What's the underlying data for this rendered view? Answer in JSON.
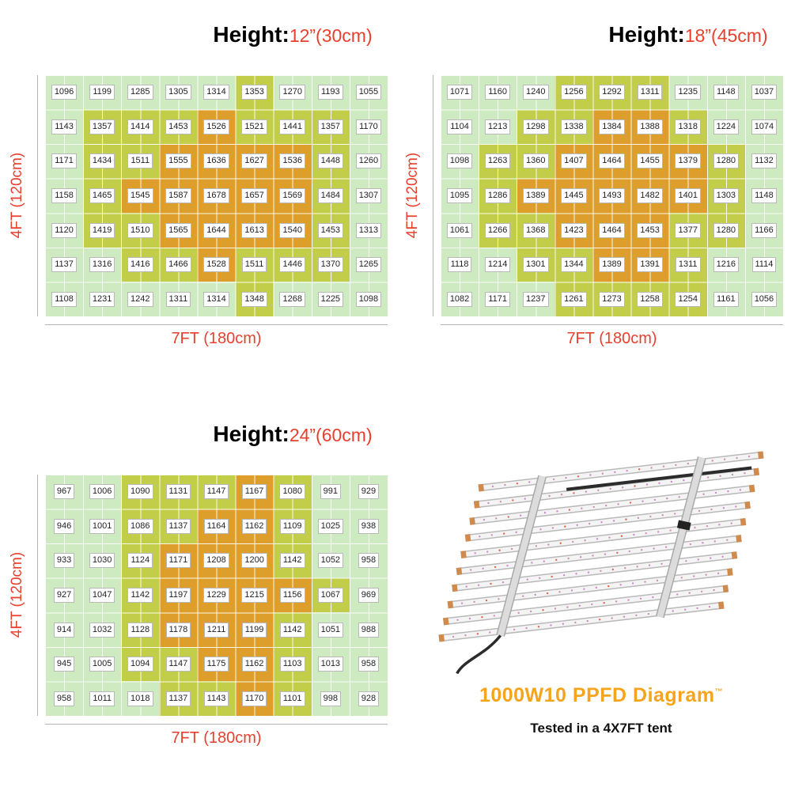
{
  "colors": {
    "band_low": "#cdeac0",
    "band_mid": "#c2cd49",
    "band_high": "#dd9e2b",
    "title_accent": "#e8402f",
    "axis_line": "#b4b4b4",
    "brand_orange": "#f5a41b",
    "grid_line": "#ffffff"
  },
  "chart_data": [
    {
      "type": "heatmap",
      "title_label": "Height:",
      "title_value": "12”(30cm)",
      "title": "Height: 12”(30cm)",
      "xlabel": "7FT (180cm)",
      "ylabel": "4FT (120cm)",
      "rows": 7,
      "cols": 9,
      "values": [
        [
          1096,
          1199,
          1285,
          1305,
          1314,
          1353,
          1270,
          1193,
          1055
        ],
        [
          1143,
          1357,
          1414,
          1453,
          1526,
          1521,
          1441,
          1357,
          1170
        ],
        [
          1171,
          1434,
          1511,
          1555,
          1636,
          1627,
          1536,
          1448,
          1260
        ],
        [
          1158,
          1465,
          1545,
          1587,
          1678,
          1657,
          1569,
          1484,
          1307
        ],
        [
          1120,
          1419,
          1510,
          1565,
          1644,
          1613,
          1540,
          1453,
          1313
        ],
        [
          1137,
          1316,
          1416,
          1466,
          1528,
          1511,
          1446,
          1370,
          1265
        ],
        [
          1108,
          1231,
          1242,
          1311,
          1314,
          1348,
          1268,
          1225,
          1098
        ]
      ]
    },
    {
      "type": "heatmap",
      "title_label": "Height:",
      "title_value": "18”(45cm)",
      "title": "Height: 18”(45cm)",
      "xlabel": "7FT (180cm)",
      "ylabel": "4FT (120cm)",
      "rows": 7,
      "cols": 9,
      "values": [
        [
          1071,
          1160,
          1240,
          1256,
          1292,
          1311,
          1235,
          1148,
          1037
        ],
        [
          1104,
          1213,
          1298,
          1338,
          1384,
          1388,
          1318,
          1224,
          1074
        ],
        [
          1098,
          1263,
          1360,
          1407,
          1464,
          1455,
          1379,
          1280,
          1132
        ],
        [
          1095,
          1286,
          1389,
          1445,
          1493,
          1482,
          1401,
          1303,
          1148
        ],
        [
          1061,
          1266,
          1368,
          1423,
          1464,
          1453,
          1377,
          1280,
          1166
        ],
        [
          1118,
          1214,
          1301,
          1344,
          1389,
          1391,
          1311,
          1216,
          1114
        ],
        [
          1082,
          1171,
          1237,
          1261,
          1273,
          1258,
          1254,
          1161,
          1056
        ]
      ]
    },
    {
      "type": "heatmap",
      "title_label": "Height:",
      "title_value": "24”(60cm)",
      "title": "Height: 24”(60cm)",
      "xlabel": "7FT (180cm)",
      "ylabel": "4FT (120cm)",
      "rows": 7,
      "cols": 9,
      "values": [
        [
          967,
          1006,
          1090,
          1131,
          1147,
          1167,
          1080,
          991,
          929
        ],
        [
          946,
          1001,
          1086,
          1137,
          1164,
          1162,
          1109,
          1025,
          938
        ],
        [
          933,
          1030,
          1124,
          1171,
          1208,
          1200,
          1142,
          1052,
          958
        ],
        [
          927,
          1047,
          1142,
          1197,
          1229,
          1215,
          1156,
          1067,
          969
        ],
        [
          914,
          1032,
          1128,
          1178,
          1211,
          1199,
          1142,
          1051,
          988
        ],
        [
          945,
          1005,
          1094,
          1147,
          1175,
          1162,
          1103,
          1013,
          958
        ],
        [
          958,
          1011,
          1018,
          1137,
          1143,
          1170,
          1101,
          998,
          928
        ]
      ]
    }
  ],
  "fixture": {
    "title": "1000W10 PPFD Diagram",
    "trademark": "™",
    "subtitle": "Tested in a 4X7FT tent",
    "colors": {
      "bar": "#f4f4f4",
      "edge": "#b9b9b9",
      "cap": "#cf8a4e",
      "rail": "#dcdcdc",
      "rail_edge": "#a9a9a9",
      "cord": "#2b2b2b",
      "led_a": "#d08bc4",
      "led_b": "#e0654f"
    }
  }
}
